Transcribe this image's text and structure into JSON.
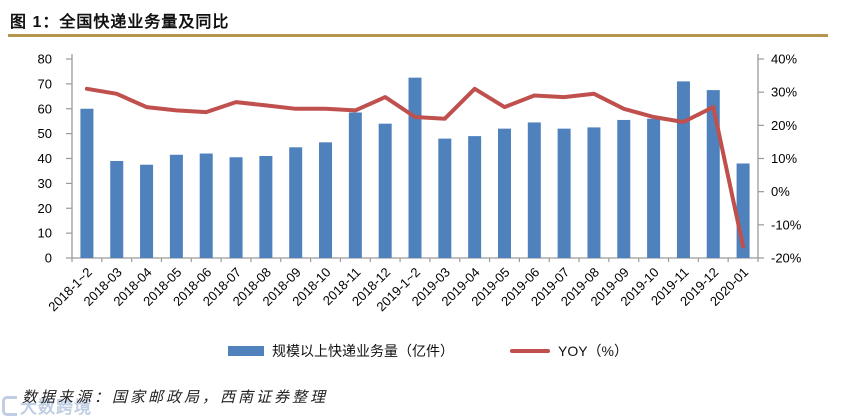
{
  "figure": {
    "title": "图 1：全国快递业务量及同比",
    "source": "数据来源：国家邮政局，西南证券整理",
    "watermark": "大数跨境",
    "accent_gold": "#B5954E"
  },
  "legend": {
    "bar_label": "规模以上快递业务量（亿件）",
    "line_label": "YOY（%）"
  },
  "chart_data": {
    "type": "bar+line",
    "title": "全国快递业务量及同比",
    "categories": [
      "2018-1~2",
      "2018-03",
      "2018-04",
      "2018-05",
      "2018-06",
      "2018-07",
      "2018-08",
      "2018-09",
      "2018-10",
      "2018-11",
      "2018-12",
      "2019-1~2",
      "2019-03",
      "2019-04",
      "2019-05",
      "2019-06",
      "2019-07",
      "2019-08",
      "2019-09",
      "2019-10",
      "2019-11",
      "2019-12",
      "2020-01"
    ],
    "series": [
      {
        "name": "规模以上快递业务量（亿件）",
        "type": "bar",
        "axis": "left",
        "color": "#4F81BD",
        "values": [
          60,
          39,
          37.5,
          41.5,
          42,
          40.5,
          41,
          44.5,
          46.5,
          58.5,
          54,
          72.5,
          48,
          49,
          52,
          54.5,
          52,
          52.5,
          55.5,
          56,
          71,
          67.5,
          38
        ]
      },
      {
        "name": "YOY（%）",
        "type": "line",
        "axis": "right",
        "color": "#C0504D",
        "values": [
          31,
          29.5,
          25.5,
          24.5,
          24,
          27,
          26,
          25,
          25,
          24.5,
          28.5,
          22.5,
          22,
          31,
          25.5,
          29,
          28.5,
          29.5,
          25,
          22.5,
          21,
          25.5,
          -16.5
        ]
      }
    ],
    "left_axis": {
      "min": 0,
      "max": 80,
      "step": 10,
      "tick_labels": [
        "0",
        "10",
        "20",
        "30",
        "40",
        "50",
        "60",
        "70",
        "80"
      ]
    },
    "right_axis": {
      "min": -20,
      "max": 40,
      "step": 10,
      "tick_labels": [
        "-20%",
        "-10%",
        "0%",
        "10%",
        "20%",
        "30%",
        "40%"
      ]
    },
    "grid": false,
    "legend_position": "bottom",
    "axis_color": "#9a9a9a"
  }
}
